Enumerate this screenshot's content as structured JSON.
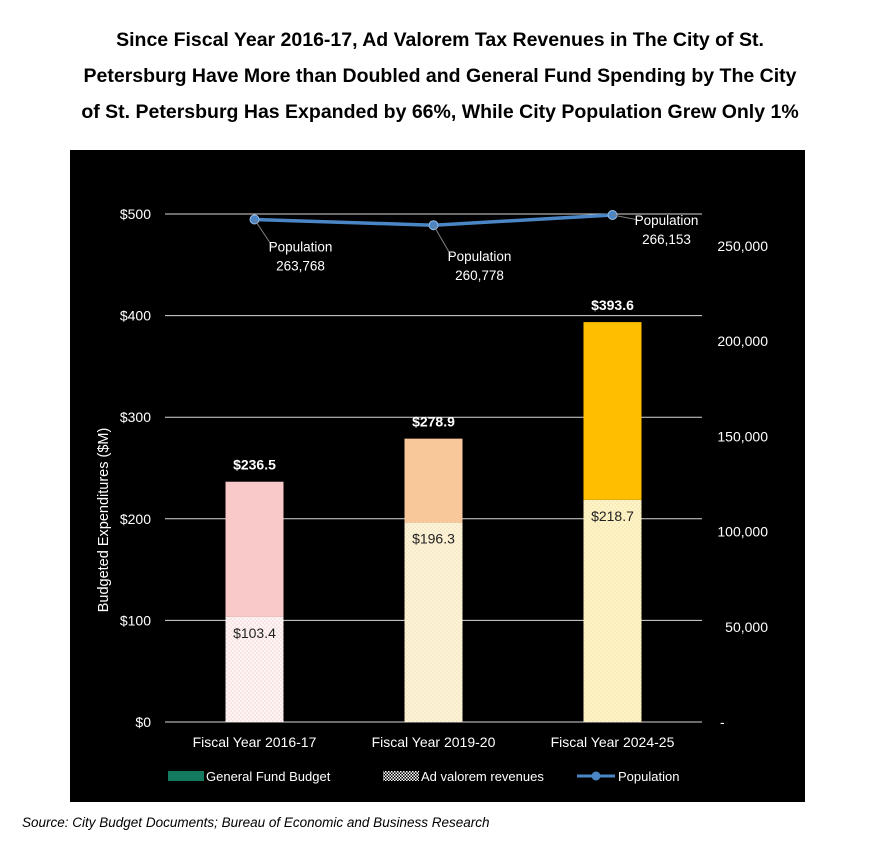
{
  "title_lines": [
    "Since Fiscal Year 2016-17, Ad Valorem Tax Revenues in The City of St.",
    "Petersburg Have More than Doubled and General Fund Spending by The City",
    "of St. Petersburg Has Expanded by 66%, While City Population Grew Only 1%"
  ],
  "source": "Source: City Budget Documents; Bureau of Economic and Business Research",
  "colors": {
    "background": "#000000",
    "gridline": "#d9d9d9",
    "population_line": "#4a86c6",
    "legend_general_fund": "#137a5f",
    "bar_tops": [
      "#f9c9c9",
      "#f8c89b",
      "#ffbf00"
    ],
    "bar_bases": [
      "#fff4f4",
      "#fdf3d8",
      "#fff3c8"
    ]
  },
  "chart_data": {
    "type": "bar",
    "categories": [
      "Fiscal Year 2016-17",
      "Fiscal Year 2019-20",
      "Fiscal Year 2024-25"
    ],
    "series": [
      {
        "name": "General Fund Budget",
        "values": [
          236.5,
          278.9,
          393.6
        ],
        "labels": [
          "$236.5",
          "$278.9",
          "$393.6"
        ]
      },
      {
        "name": "Ad valorem revenues",
        "values": [
          103.4,
          196.3,
          218.7
        ],
        "labels": [
          "$103.4",
          "$196.3",
          "$218.7"
        ]
      },
      {
        "name": "Population",
        "axis": "secondary",
        "type": "line",
        "values": [
          263768,
          260778,
          266153
        ],
        "labels": [
          [
            "Population",
            "263,768"
          ],
          [
            "Population",
            "260,778"
          ],
          [
            "Population",
            "266,153"
          ]
        ]
      }
    ],
    "ylabel": "Budgeted Expenditures ($M)",
    "ylim": [
      0,
      500
    ],
    "yticks": [
      0,
      100,
      200,
      300,
      400,
      500
    ],
    "ytick_labels": [
      "$0",
      "$100",
      "$200",
      "$300",
      "$400",
      "$500"
    ],
    "y2lim": [
      0,
      266666.67
    ],
    "y2ticks": [
      0,
      50000,
      100000,
      150000,
      200000,
      250000
    ],
    "y2tick_labels": [
      "-",
      "50,000",
      "100,000",
      "150,000",
      "200,000",
      "250,000"
    ],
    "legend": [
      "General Fund Budget",
      "Ad valorem revenues",
      "Population"
    ],
    "legend_position": "bottom",
    "grid": true
  }
}
